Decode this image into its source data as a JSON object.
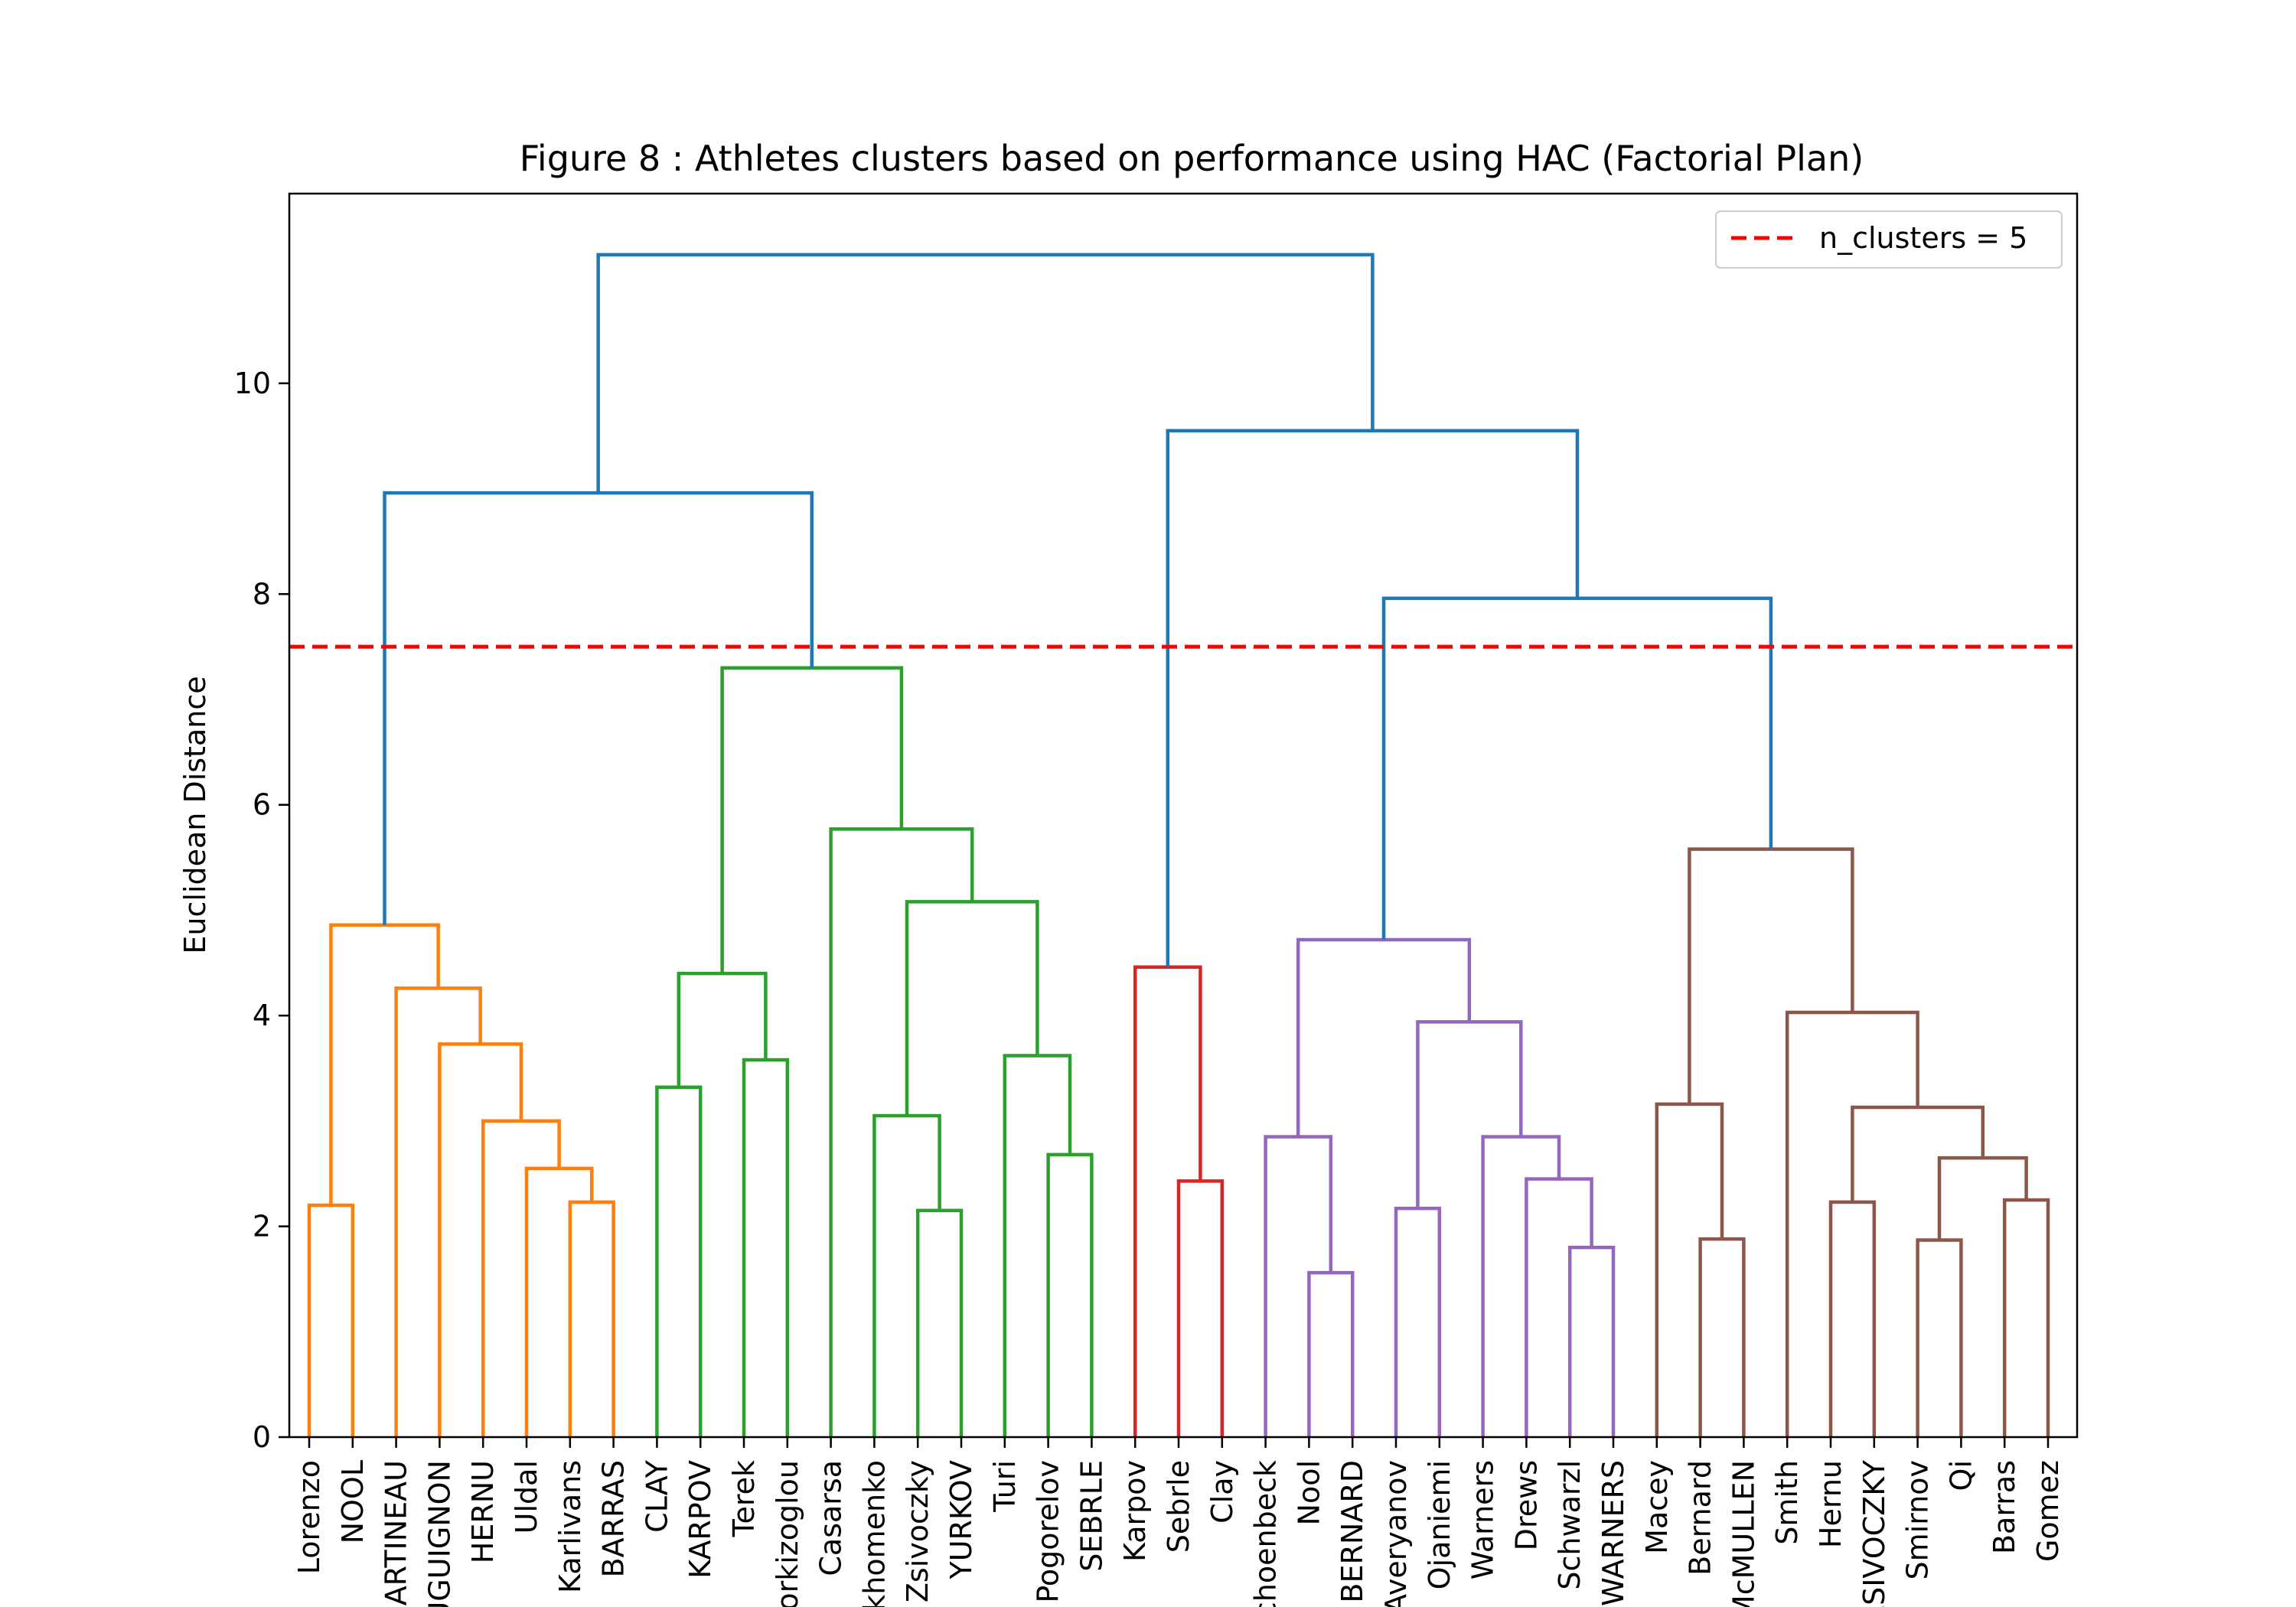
{
  "chart_data": {
    "type": "dendrogram",
    "title": "Figure 8 : Athletes clusters based on performance using HAC (Factorial Plan)",
    "ylabel": "Euclidean Distance",
    "xlabel": "",
    "ylim": [
      0,
      11.8
    ],
    "yticks": [
      0,
      2,
      4,
      6,
      8,
      10
    ],
    "grid": false,
    "legend": {
      "placement": "top-right",
      "label": "n_clusters = 5",
      "color": "#e41a1c"
    },
    "cut_height": 7.5,
    "colors": {
      "orange": "#ff7f0e",
      "green": "#2ca02c",
      "red": "#d62728",
      "purple": "#9467bd",
      "brown": "#8c564b",
      "blue": "#1f77b4",
      "cut": "#ff0000"
    },
    "leaves": [
      "Lorenzo",
      "NOOL",
      "MARTINEAU",
      "BOUGUIGNON",
      "HERNU",
      "Uldal",
      "Karlivans",
      "BARRAS",
      "CLAY",
      "KARPOV",
      "Terek",
      "Korkizoglou",
      "Casarsa",
      "Parkhomenko",
      "Zsivoczky",
      "YURKOV",
      "Turi",
      "Pogorelov",
      "SEBRLE",
      "Karpov",
      "Sebrle",
      "Clay",
      "Schoenbeck",
      "Nool",
      "BERNARD",
      "Averyanov",
      "Ojaniemi",
      "Warners",
      "Drews",
      "Schwarzl",
      "WARNERS",
      "Macey",
      "Bernard",
      "McMULLEN",
      "Smith",
      "Hernu",
      "ZSIVOCZKY",
      "Smirnov",
      "Qi",
      "Barras",
      "Gomez"
    ],
    "merges": [
      {
        "id": "o1",
        "left": 0,
        "right": 1,
        "height": 2.2,
        "color": "orange"
      },
      {
        "id": "o2",
        "left": 6,
        "right": 7,
        "height": 2.23,
        "color": "orange"
      },
      {
        "id": "o3",
        "left": 5,
        "right": "o2",
        "height": 2.55,
        "color": "orange"
      },
      {
        "id": "o4",
        "left": 4,
        "right": "o3",
        "height": 3.0,
        "color": "orange"
      },
      {
        "id": "o5",
        "left": 3,
        "right": "o4",
        "height": 3.73,
        "color": "orange"
      },
      {
        "id": "o6",
        "left": 2,
        "right": "o5",
        "height": 4.26,
        "color": "orange"
      },
      {
        "id": "o7",
        "left": "o1",
        "right": "o6",
        "height": 4.86,
        "color": "orange"
      },
      {
        "id": "g1",
        "left": 8,
        "right": 9,
        "height": 3.32,
        "color": "green"
      },
      {
        "id": "g2",
        "left": 10,
        "right": 11,
        "height": 3.58,
        "color": "green"
      },
      {
        "id": "g3",
        "left": "g1",
        "right": "g2",
        "height": 4.4,
        "color": "green"
      },
      {
        "id": "g4",
        "left": 14,
        "right": 15,
        "height": 2.15,
        "color": "green"
      },
      {
        "id": "g5",
        "left": 13,
        "right": "g4",
        "height": 3.05,
        "color": "green"
      },
      {
        "id": "g6",
        "left": 17,
        "right": 18,
        "height": 2.68,
        "color": "green"
      },
      {
        "id": "g7",
        "left": 16,
        "right": "g6",
        "height": 3.62,
        "color": "green"
      },
      {
        "id": "g8",
        "left": "g5",
        "right": "g7",
        "height": 5.08,
        "color": "green"
      },
      {
        "id": "g9",
        "left": 12,
        "right": "g8",
        "height": 5.77,
        "color": "green"
      },
      {
        "id": "g10",
        "left": "g3",
        "right": "g9",
        "height": 7.3,
        "color": "green"
      },
      {
        "id": "r1",
        "left": 20,
        "right": 21,
        "height": 2.43,
        "color": "red"
      },
      {
        "id": "r2",
        "left": 19,
        "right": "r1",
        "height": 4.46,
        "color": "red"
      },
      {
        "id": "p1",
        "left": 23,
        "right": 24,
        "height": 1.56,
        "color": "purple"
      },
      {
        "id": "p2",
        "left": 22,
        "right": "p1",
        "height": 2.85,
        "color": "purple"
      },
      {
        "id": "p3",
        "left": 25,
        "right": 26,
        "height": 2.17,
        "color": "purple"
      },
      {
        "id": "p4",
        "left": 29,
        "right": 30,
        "height": 1.8,
        "color": "purple"
      },
      {
        "id": "p5",
        "left": 28,
        "right": "p4",
        "height": 2.45,
        "color": "purple"
      },
      {
        "id": "p6",
        "left": 27,
        "right": "p5",
        "height": 2.85,
        "color": "purple"
      },
      {
        "id": "p7",
        "left": "p3",
        "right": "p6",
        "height": 3.94,
        "color": "purple"
      },
      {
        "id": "p8",
        "left": "p2",
        "right": "p7",
        "height": 4.72,
        "color": "purple"
      },
      {
        "id": "b1",
        "left": 32,
        "right": 33,
        "height": 1.88,
        "color": "brown"
      },
      {
        "id": "b2",
        "left": 31,
        "right": "b1",
        "height": 3.16,
        "color": "brown"
      },
      {
        "id": "b3",
        "left": 35,
        "right": 36,
        "height": 2.23,
        "color": "brown"
      },
      {
        "id": "b4",
        "left": 37,
        "right": 38,
        "height": 1.87,
        "color": "brown"
      },
      {
        "id": "b5",
        "left": 39,
        "right": 40,
        "height": 2.25,
        "color": "brown"
      },
      {
        "id": "b6",
        "left": "b4",
        "right": "b5",
        "height": 2.65,
        "color": "brown"
      },
      {
        "id": "b7",
        "left": "b3",
        "right": "b6",
        "height": 3.13,
        "color": "brown"
      },
      {
        "id": "b8",
        "left": 34,
        "right": "b7",
        "height": 4.03,
        "color": "brown"
      },
      {
        "id": "b9",
        "left": "b2",
        "right": "b8",
        "height": 5.58,
        "color": "brown"
      },
      {
        "id": "u1",
        "left": "o7",
        "right": "g10",
        "height": 8.96,
        "color": "blue"
      },
      {
        "id": "u2",
        "left": "p8",
        "right": "b9",
        "height": 7.96,
        "color": "blue"
      },
      {
        "id": "u3",
        "left": "r2",
        "right": "u2",
        "height": 9.55,
        "color": "blue"
      },
      {
        "id": "u4",
        "left": "u1",
        "right": "u3",
        "height": 11.22,
        "color": "blue"
      }
    ]
  }
}
